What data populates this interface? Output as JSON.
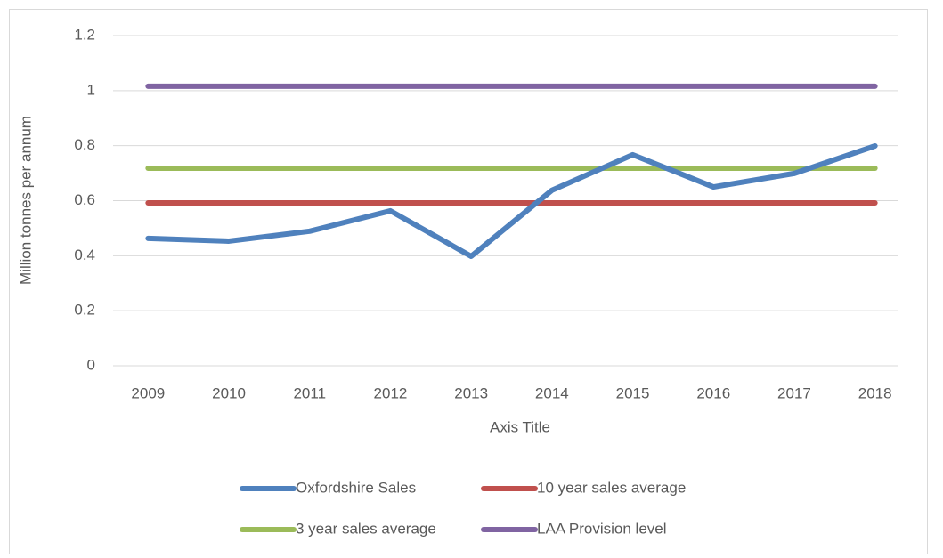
{
  "chart_data": {
    "type": "line",
    "y_label": "Million tonnes per annum",
    "x_label": "Axis Title",
    "categories": [
      "2009",
      "2010",
      "2011",
      "2012",
      "2013",
      "2014",
      "2015",
      "2016",
      "2017",
      "2018"
    ],
    "series": [
      {
        "name": "Oxfordshire Sales",
        "color": "#4f81bd",
        "values": [
          0.463,
          0.453,
          0.489,
          0.563,
          0.398,
          0.638,
          0.767,
          0.65,
          0.699,
          0.799
        ]
      },
      {
        "name": "10 year sales average",
        "color": "#c0504d",
        "values": [
          0.592,
          0.592,
          0.592,
          0.592,
          0.592,
          0.592,
          0.592,
          0.592,
          0.592,
          0.592
        ]
      },
      {
        "name": "3 year sales average",
        "color": "#9bbb59",
        "values": [
          0.718,
          0.718,
          0.718,
          0.718,
          0.718,
          0.718,
          0.718,
          0.718,
          0.718,
          0.718
        ]
      },
      {
        "name": "LAA Provision level",
        "color": "#8064a2",
        "values": [
          1.016,
          1.016,
          1.016,
          1.016,
          1.016,
          1.016,
          1.016,
          1.016,
          1.016,
          1.016
        ]
      }
    ],
    "ylim": [
      0,
      1.2
    ],
    "yticks": [
      0,
      0.2,
      0.4,
      0.6,
      0.8,
      1,
      1.2
    ],
    "grid": true,
    "legend": "bottom"
  }
}
